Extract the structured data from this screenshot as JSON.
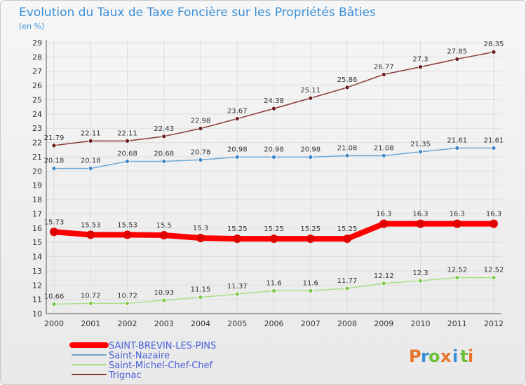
{
  "chart_data": {
    "type": "line",
    "title": "Evolution du Taux de Taxe Foncière sur les Propriétés Bâties",
    "subtitle": "(en %)",
    "xlabel": "",
    "ylabel": "",
    "ylim": [
      10,
      29
    ],
    "yticks": [
      10,
      11,
      12,
      13,
      14,
      15,
      16,
      17,
      18,
      19,
      20,
      21,
      22,
      23,
      24,
      25,
      26,
      27,
      28,
      29
    ],
    "grid": true,
    "legend_position": "bottom-left",
    "x": [
      "2000",
      "2001",
      "2002",
      "2003",
      "2004",
      "2005",
      "2006",
      "2007",
      "2008",
      "2009",
      "2010",
      "2011",
      "2012"
    ],
    "series": [
      {
        "name": "SAINT-BREVIN-LES-PINS",
        "color": "#ff0000",
        "marker_color": "#e00000",
        "values": [
          15.73,
          15.53,
          15.53,
          15.5,
          15.3,
          15.25,
          15.25,
          15.25,
          15.25,
          16.3,
          16.3,
          16.3,
          16.3
        ],
        "labels": [
          "15.73",
          "15.53",
          "15.53",
          "15.5",
          "15.3",
          "15.25",
          "15.25",
          "15.25",
          "15.25",
          "16.3",
          "16.3",
          "16.3",
          "16.3"
        ]
      },
      {
        "name": "Saint-Nazaire",
        "color": "#6fa8d6",
        "marker_color": "#3d87c9",
        "values": [
          20.18,
          20.18,
          20.68,
          20.68,
          20.78,
          20.98,
          20.98,
          20.98,
          21.08,
          21.08,
          21.35,
          21.61,
          21.61
        ],
        "labels": [
          "20.18",
          "20.18",
          "20.68",
          "20.68",
          "20.78",
          "20.98",
          "20.98",
          "20.98",
          "21.08",
          "21.08",
          "21.35",
          "21.61",
          "21.61"
        ]
      },
      {
        "name": "Saint-Michel-Chef-Chef",
        "color": "#a8e08a",
        "marker_color": "#7dc84a",
        "values": [
          10.66,
          10.72,
          10.72,
          10.93,
          11.15,
          11.37,
          11.6,
          11.6,
          11.77,
          12.12,
          12.3,
          12.52,
          12.52
        ],
        "labels": [
          "10.66",
          "10.72",
          "10.72",
          "10.93",
          "11.15",
          "11.37",
          "11.6",
          "11.6",
          "11.77",
          "12.12",
          "12.3",
          "12.52",
          "12.52"
        ]
      },
      {
        "name": "Trignac",
        "color": "#8b3a3a",
        "marker_color": "#6b1a1a",
        "values": [
          21.79,
          22.11,
          22.11,
          22.43,
          22.98,
          23.67,
          24.38,
          25.11,
          25.86,
          26.77,
          27.3,
          27.85,
          28.35
        ],
        "labels": [
          "21.79",
          "22.11",
          "22.11",
          "22.43",
          "22.98",
          "23.67",
          "24.38",
          "25.11",
          "25.86",
          "26.77",
          "27.3",
          "27.85",
          "28.35"
        ]
      }
    ]
  },
  "logo": {
    "text": "Proxiti",
    "letters": [
      {
        "ch": "P",
        "color": "#e8742a"
      },
      {
        "ch": "r",
        "color": "#3a8fd6"
      },
      {
        "ch": "o",
        "color": "#6cbf3a"
      },
      {
        "ch": "x",
        "color": "#e8742a"
      },
      {
        "ch": "i",
        "color": "#3a8fd6"
      },
      {
        "ch": "t",
        "color": "#6cbf3a"
      },
      {
        "ch": "i",
        "color": "#e8742a"
      }
    ]
  }
}
